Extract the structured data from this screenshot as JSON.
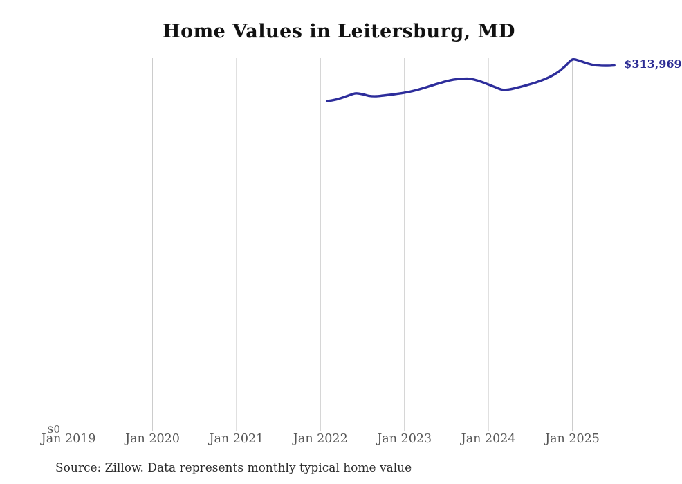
{
  "page": {
    "title": "Home Values in Leitersburg, MD",
    "source_note": "Source: Zillow. Data represents monthly typical home value"
  },
  "chart_data": {
    "type": "line",
    "title": "Home Values in Leitersburg, MD",
    "xlabel": "",
    "ylabel": "",
    "x_tick_labels": [
      "Jan 2019",
      "Jan 2020",
      "Jan 2021",
      "Jan 2022",
      "Jan 2023",
      "Jan 2024",
      "Jan 2025"
    ],
    "y_tick_labels": [
      "$0"
    ],
    "y_axis": {
      "min": 0,
      "zero_label": "$0"
    },
    "gridlines": "vertical-at-years-2020-through-2025",
    "legend": "none",
    "end_label": "$313,969",
    "source": "Source: Zillow. Data represents monthly typical home value",
    "series": [
      {
        "name": "Monthly typical home value",
        "months": [
          "Feb 2022",
          "Mar 2022",
          "Apr 2022",
          "May 2022",
          "Jun 2022",
          "Jul 2022",
          "Aug 2022",
          "Sep 2022",
          "Oct 2022",
          "Nov 2022",
          "Dec 2022",
          "Jan 2023",
          "Feb 2023",
          "Mar 2023",
          "Apr 2023",
          "May 2023",
          "Jun 2023",
          "Jul 2023",
          "Aug 2023",
          "Sep 2023",
          "Oct 2023",
          "Nov 2023",
          "Dec 2023",
          "Jan 2024",
          "Feb 2024",
          "Mar 2024",
          "Apr 2024",
          "May 2024",
          "Jun 2024",
          "Jul 2024",
          "Aug 2024",
          "Sep 2024",
          "Oct 2024",
          "Nov 2024",
          "Dec 2024",
          "Jan 2025",
          "Feb 2025",
          "Mar 2025",
          "Apr 2025",
          "May 2025",
          "Jun 2025",
          "Jul 2025"
        ],
        "values": [
          283300,
          284300,
          286000,
          288100,
          289900,
          289200,
          287700,
          287500,
          288100,
          288800,
          289600,
          290500,
          291700,
          293200,
          295000,
          296900,
          298700,
          300400,
          301700,
          302400,
          302600,
          301700,
          299900,
          297600,
          295200,
          293100,
          293400,
          294700,
          296200,
          297900,
          299800,
          302000,
          304800,
          308500,
          313500,
          319000,
          318000,
          316000,
          314400,
          313800,
          313700,
          313969
        ]
      }
    ],
    "colors": {
      "line": "#2d2d9b",
      "end_label_text": "#2c2c94",
      "gridline": "#cccccc",
      "axis_text": "#565656",
      "title_text": "#111111",
      "source_text": "#2b2b2b"
    }
  }
}
